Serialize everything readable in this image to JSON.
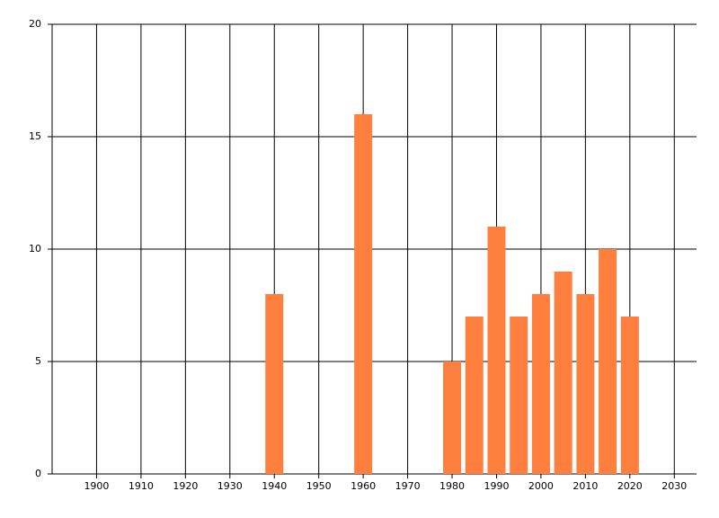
{
  "chart_data": {
    "type": "bar",
    "x": [
      1940,
      1960,
      1980,
      1985,
      1990,
      1995,
      2000,
      2005,
      2010,
      2015,
      2020
    ],
    "values": [
      8,
      16,
      5,
      7,
      11,
      7,
      8,
      9,
      8,
      10,
      7
    ],
    "color": "#ff7f3f",
    "xlim": [
      1890,
      2035
    ],
    "xticks": [
      1900,
      1910,
      1920,
      1930,
      1940,
      1950,
      1960,
      1970,
      1980,
      1990,
      2000,
      2010,
      2020,
      2030
    ],
    "ylim": [
      0,
      20
    ],
    "yticks": [
      0,
      5,
      10,
      15,
      20
    ],
    "grid": true
  }
}
